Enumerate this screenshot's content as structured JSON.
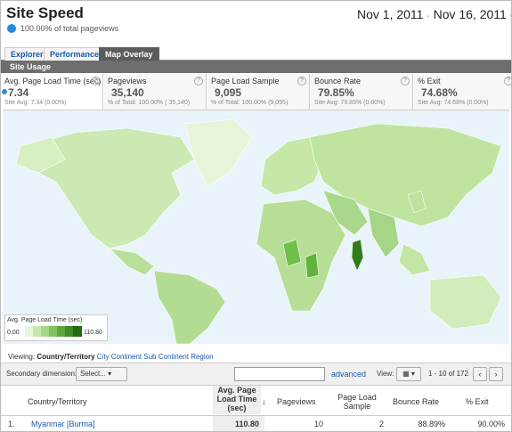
{
  "header": {
    "title": "Site Speed",
    "subtitle": "100.00% of total pageviews",
    "date_start": "Nov 1, 2011",
    "date_sep": "-",
    "date_end": "Nov 16, 2011"
  },
  "tabs": [
    "Explorer",
    "Performance",
    "Map Overlay"
  ],
  "section": "Site Usage",
  "metrics": [
    {
      "label": "Avg. Page Load Time (sec)",
      "value": "7.34",
      "sub": "Site Avg: 7.34 (0.00%)"
    },
    {
      "label": "Pageviews",
      "value": "35,140",
      "sub": "% of Total: 100.00% ( 35,140)"
    },
    {
      "label": "Page Load Sample",
      "value": "9,095",
      "sub": "% of Total: 100.00% (9,095)"
    },
    {
      "label": "Bounce Rate",
      "value": "79.85%",
      "sub": "Site Avg: 79.85% (0.00%)"
    },
    {
      "label": "% Exit",
      "value": "74.68%",
      "sub": "Site Avg: 74.68% (0.00%)"
    }
  ],
  "map_legend": {
    "title": "Avg. Page Load Time (sec)",
    "min": "0.00",
    "max": "110.80"
  },
  "viewing": {
    "label": "Viewing:",
    "options": [
      "Country/Territory",
      "City",
      "Continent",
      "Sub Continent Region"
    ]
  },
  "toolbar": {
    "secondary_label": "Secondary dimension:",
    "select": "Select...",
    "advanced": "advanced",
    "view_label": "View:",
    "pagination": "1 - 10 of 172"
  },
  "table": {
    "columns": [
      "Country/Territory",
      "Avg. Page Load Time (sec)",
      "Pageviews",
      "Page Load Sample",
      "Bounce Rate",
      "% Exit"
    ],
    "rows": [
      [
        "1.",
        "Myanmar [Burma]",
        "110.80",
        "10",
        "2",
        "88.89%",
        "90.00%"
      ]
    ]
  }
}
